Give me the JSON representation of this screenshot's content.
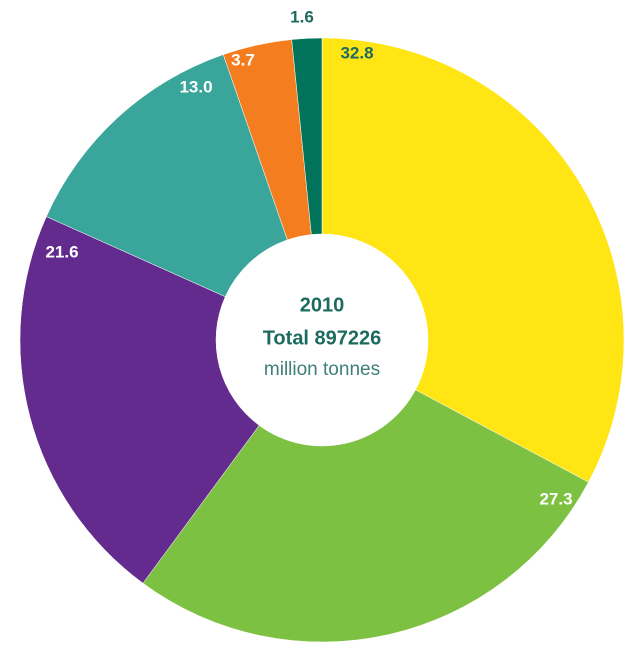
{
  "chart_data": {
    "type": "donut",
    "values": [
      32.8,
      27.3,
      21.6,
      13.0,
      3.7,
      1.6
    ],
    "value_labels": [
      "32.8",
      "27.3",
      "21.6",
      "13.0",
      "3.7",
      "1.6"
    ],
    "colors": [
      "#ffe514",
      "#7dc142",
      "#632b8e",
      "#3aa59a",
      "#f47d20",
      "#00735a"
    ],
    "center_text": [
      "2010",
      "Total 897226",
      "million tonnes"
    ]
  }
}
